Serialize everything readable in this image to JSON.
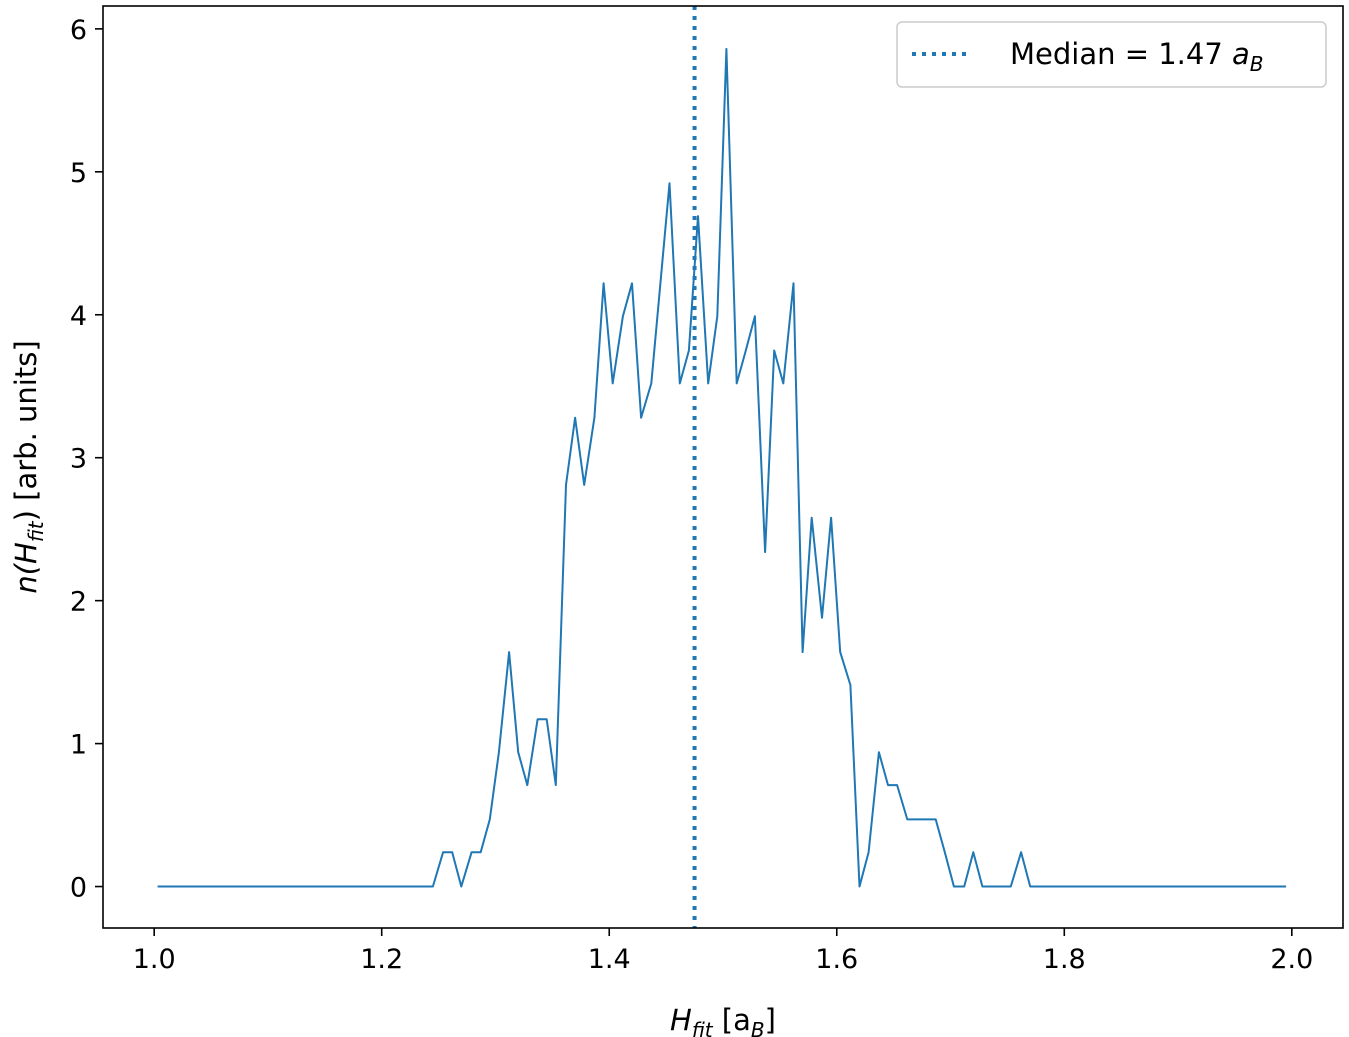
{
  "chart_data": {
    "type": "line",
    "xlabel": {
      "main": "H",
      "sub": "fit",
      "rest": " [a",
      "rest_sub": "B",
      "close": "]"
    },
    "ylabel": {
      "main": "n(H",
      "sub": "fit",
      "rest": ") [arb. units]"
    },
    "xlim": [
      0.955,
      2.045
    ],
    "ylim": [
      -0.29,
      6.16
    ],
    "xticks": [
      1.0,
      1.2,
      1.4,
      1.6,
      1.8,
      2.0
    ],
    "xtick_labels": [
      "1.0",
      "1.2",
      "1.4",
      "1.6",
      "1.8",
      "2.0"
    ],
    "yticks": [
      0,
      1,
      2,
      3,
      4,
      5,
      6
    ],
    "ytick_labels": [
      "0",
      "1",
      "2",
      "3",
      "4",
      "5",
      "6"
    ],
    "series": [
      {
        "color": "#1f77b4",
        "style": "solid",
        "x": [
          1.003,
          1.245,
          1.254,
          1.262,
          1.27,
          1.279,
          1.287,
          1.295,
          1.303,
          1.312,
          1.32,
          1.328,
          1.337,
          1.345,
          1.353,
          1.362,
          1.37,
          1.378,
          1.387,
          1.395,
          1.403,
          1.412,
          1.42,
          1.428,
          1.437,
          1.445,
          1.453,
          1.462,
          1.47,
          1.478,
          1.487,
          1.495,
          1.503,
          1.512,
          1.52,
          1.528,
          1.537,
          1.545,
          1.553,
          1.562,
          1.57,
          1.578,
          1.587,
          1.595,
          1.603,
          1.612,
          1.62,
          1.628,
          1.637,
          1.645,
          1.653,
          1.662,
          1.67,
          1.678,
          1.687,
          1.695,
          1.703,
          1.712,
          1.72,
          1.728,
          1.737,
          1.745,
          1.753,
          1.762,
          1.77,
          1.995
        ],
        "y": [
          0,
          0,
          0.24,
          0.24,
          0,
          0.24,
          0.24,
          0.47,
          0.94,
          1.64,
          0.94,
          0.71,
          1.17,
          1.17,
          0.71,
          2.81,
          3.28,
          2.81,
          3.28,
          4.22,
          3.52,
          3.99,
          4.22,
          3.28,
          3.52,
          4.22,
          4.92,
          3.52,
          3.75,
          4.69,
          3.52,
          3.99,
          5.86,
          3.52,
          3.75,
          3.99,
          2.34,
          3.75,
          3.52,
          4.22,
          1.64,
          2.58,
          1.88,
          2.58,
          1.64,
          1.41,
          0,
          0.24,
          0.94,
          0.71,
          0.71,
          0.47,
          0.47,
          0.47,
          0.47,
          0.24,
          0,
          0,
          0.24,
          0,
          0,
          0,
          0,
          0.24,
          0,
          0
        ]
      }
    ],
    "median": {
      "value": 1.475,
      "color": "#1f77b4",
      "style": "dotted"
    },
    "legend": {
      "position": "top-right",
      "label_main": "Median = 1.47 ",
      "label_italic": "a",
      "label_sub": "B"
    },
    "grid": false
  }
}
